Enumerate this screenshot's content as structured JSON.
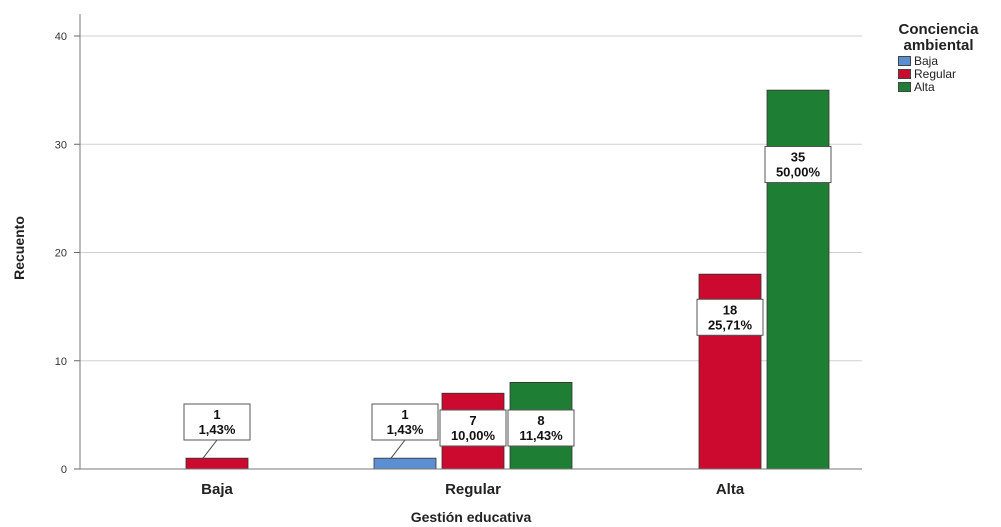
{
  "chart_data": {
    "type": "bar",
    "title": "",
    "xlabel": "Gestión educativa",
    "ylabel": "Recuento",
    "ylim": [
      0,
      40
    ],
    "yticks": [
      "0",
      "10",
      "20",
      "30",
      "40"
    ],
    "categories": [
      "Baja",
      "Regular",
      "Alta"
    ],
    "legend": {
      "title": "Conciencia ambiental",
      "placement": "top-right"
    },
    "grid": true,
    "series": [
      {
        "name": "Baja",
        "color": "#5b8fd1",
        "values": [
          0,
          1,
          0
        ],
        "labels": [
          [
            "",
            ""
          ],
          [
            "1",
            "1,43%"
          ],
          [
            "",
            ""
          ]
        ]
      },
      {
        "name": "Regular",
        "color": "#cc0a2f",
        "values": [
          1,
          7,
          18
        ],
        "labels": [
          [
            "1",
            "1,43%"
          ],
          [
            "7",
            "10,00%"
          ],
          [
            "18",
            "25,71%"
          ]
        ]
      },
      {
        "name": "Alta",
        "color": "#1e7f34",
        "values": [
          0,
          8,
          35
        ],
        "labels": [
          [
            "",
            ""
          ],
          [
            "8",
            "11,43%"
          ],
          [
            "35",
            "50,00%"
          ]
        ]
      }
    ]
  }
}
